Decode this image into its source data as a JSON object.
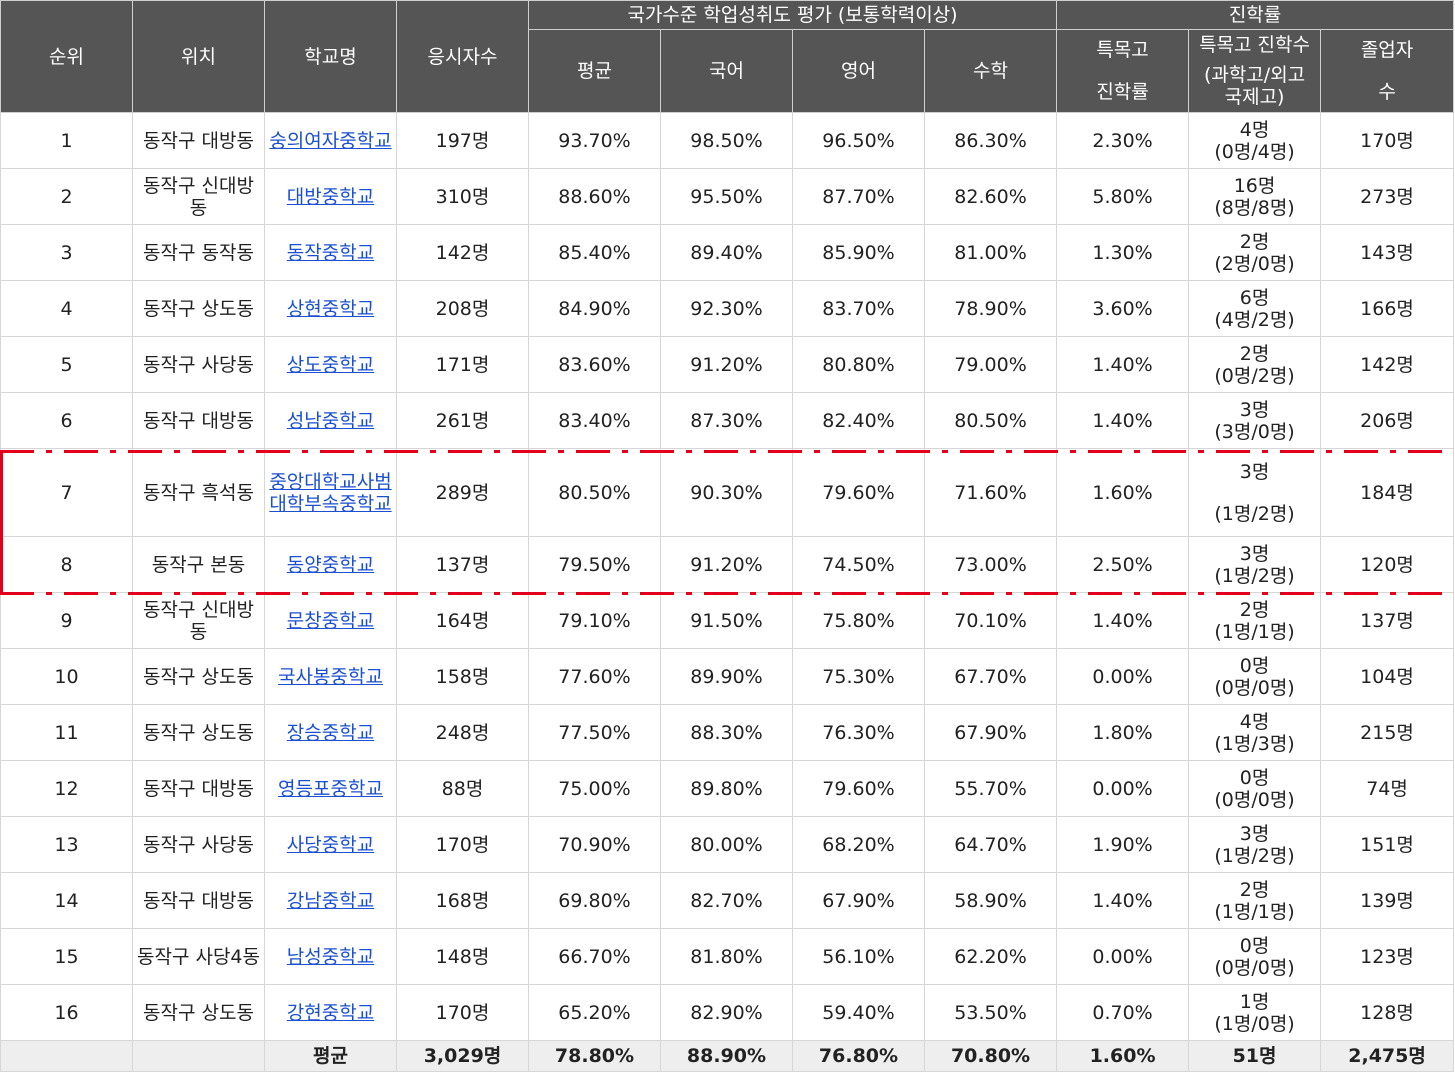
{
  "header": {
    "rank": "순위",
    "location": "위치",
    "school": "학교명",
    "examinees": "응시자수",
    "eval_group": "국가수준 학업성취도 평가 (보통학력이상)",
    "avg": "평균",
    "korean": "국어",
    "english": "영어",
    "math": "수학",
    "adv_group": "진학률",
    "special_rate_1": "특목고",
    "special_rate_2": "진학률",
    "special_count_1": "특목고 진학수",
    "special_count_2": "(과학고/외고",
    "special_count_3": "국제고)",
    "grad_1": "졸업자",
    "grad_2": "수"
  },
  "rows": [
    {
      "rank": "1",
      "location": "동작구 대방동",
      "school": "숭의여자중학교",
      "examinees": "197명",
      "avg": "93.70%",
      "korean": "98.50%",
      "english": "96.50%",
      "math": "86.30%",
      "rate": "2.30%",
      "count": "4명",
      "breakdown": "(0명/4명)",
      "grads": "170명"
    },
    {
      "rank": "2",
      "location": "동작구 신대방동",
      "school": "대방중학교",
      "examinees": "310명",
      "avg": "88.60%",
      "korean": "95.50%",
      "english": "87.70%",
      "math": "82.60%",
      "rate": "5.80%",
      "count": "16명",
      "breakdown": "(8명/8명)",
      "grads": "273명"
    },
    {
      "rank": "3",
      "location": "동작구 동작동",
      "school": "동작중학교",
      "examinees": "142명",
      "avg": "85.40%",
      "korean": "89.40%",
      "english": "85.90%",
      "math": "81.00%",
      "rate": "1.30%",
      "count": "2명",
      "breakdown": "(2명/0명)",
      "grads": "143명"
    },
    {
      "rank": "4",
      "location": "동작구 상도동",
      "school": "상현중학교",
      "examinees": "208명",
      "avg": "84.90%",
      "korean": "92.30%",
      "english": "83.70%",
      "math": "78.90%",
      "rate": "3.60%",
      "count": "6명",
      "breakdown": "(4명/2명)",
      "grads": "166명"
    },
    {
      "rank": "5",
      "location": "동작구 사당동",
      "school": "상도중학교",
      "examinees": "171명",
      "avg": "83.60%",
      "korean": "91.20%",
      "english": "80.80%",
      "math": "79.00%",
      "rate": "1.40%",
      "count": "2명",
      "breakdown": "(0명/2명)",
      "grads": "142명"
    },
    {
      "rank": "6",
      "location": "동작구 대방동",
      "school": "성남중학교",
      "examinees": "261명",
      "avg": "83.40%",
      "korean": "87.30%",
      "english": "82.40%",
      "math": "80.50%",
      "rate": "1.40%",
      "count": "3명",
      "breakdown": "(3명/0명)",
      "grads": "206명"
    },
    {
      "rank": "7",
      "location": "동작구 흑석동",
      "school": "중앙대학교사범대학부속중학교",
      "examinees": "289명",
      "avg": "80.50%",
      "korean": "90.30%",
      "english": "79.60%",
      "math": "71.60%",
      "rate": "1.60%",
      "count": "3명",
      "breakdown": "(1명/2명)",
      "grads": "184명"
    },
    {
      "rank": "8",
      "location": "동작구 본동",
      "school": "동양중학교",
      "examinees": "137명",
      "avg": "79.50%",
      "korean": "91.20%",
      "english": "74.50%",
      "math": "73.00%",
      "rate": "2.50%",
      "count": "3명",
      "breakdown": "(1명/2명)",
      "grads": "120명"
    },
    {
      "rank": "9",
      "location": "동작구 신대방동",
      "school": "문창중학교",
      "examinees": "164명",
      "avg": "79.10%",
      "korean": "91.50%",
      "english": "75.80%",
      "math": "70.10%",
      "rate": "1.40%",
      "count": "2명",
      "breakdown": "(1명/1명)",
      "grads": "137명"
    },
    {
      "rank": "10",
      "location": "동작구 상도동",
      "school": "국사봉중학교",
      "examinees": "158명",
      "avg": "77.60%",
      "korean": "89.90%",
      "english": "75.30%",
      "math": "67.70%",
      "rate": "0.00%",
      "count": "0명",
      "breakdown": "(0명/0명)",
      "grads": "104명"
    },
    {
      "rank": "11",
      "location": "동작구 상도동",
      "school": "장승중학교",
      "examinees": "248명",
      "avg": "77.50%",
      "korean": "88.30%",
      "english": "76.30%",
      "math": "67.90%",
      "rate": "1.80%",
      "count": "4명",
      "breakdown": "(1명/3명)",
      "grads": "215명"
    },
    {
      "rank": "12",
      "location": "동작구 대방동",
      "school": "영등포중학교",
      "examinees": "88명",
      "avg": "75.00%",
      "korean": "89.80%",
      "english": "79.60%",
      "math": "55.70%",
      "rate": "0.00%",
      "count": "0명",
      "breakdown": "(0명/0명)",
      "grads": "74명"
    },
    {
      "rank": "13",
      "location": "동작구 사당동",
      "school": "사당중학교",
      "examinees": "170명",
      "avg": "70.90%",
      "korean": "80.00%",
      "english": "68.20%",
      "math": "64.70%",
      "rate": "1.90%",
      "count": "3명",
      "breakdown": "(1명/2명)",
      "grads": "151명"
    },
    {
      "rank": "14",
      "location": "동작구 대방동",
      "school": "강남중학교",
      "examinees": "168명",
      "avg": "69.80%",
      "korean": "82.70%",
      "english": "67.90%",
      "math": "58.90%",
      "rate": "1.40%",
      "count": "2명",
      "breakdown": "(1명/1명)",
      "grads": "139명"
    },
    {
      "rank": "15",
      "location": "동작구 사당4동",
      "school": "남성중학교",
      "examinees": "148명",
      "avg": "66.70%",
      "korean": "81.80%",
      "english": "56.10%",
      "math": "62.20%",
      "rate": "0.00%",
      "count": "0명",
      "breakdown": "(0명/0명)",
      "grads": "123명"
    },
    {
      "rank": "16",
      "location": "동작구 상도동",
      "school": "강현중학교",
      "examinees": "170명",
      "avg": "65.20%",
      "korean": "82.90%",
      "english": "59.40%",
      "math": "53.50%",
      "rate": "0.70%",
      "count": "1명",
      "breakdown": "(1명/0명)",
      "grads": "128명"
    }
  ],
  "footer": {
    "label": "평균",
    "examinees": "3,029명",
    "avg": "78.80%",
    "korean": "88.90%",
    "english": "76.80%",
    "math": "70.80%",
    "rate": "1.60%",
    "count": "51명",
    "grads": "2,475명"
  },
  "colors": {
    "header_bg": "#555555",
    "link": "#1a4fd1",
    "highlight": "#e3001b",
    "footer_bg": "#eeeeee"
  }
}
